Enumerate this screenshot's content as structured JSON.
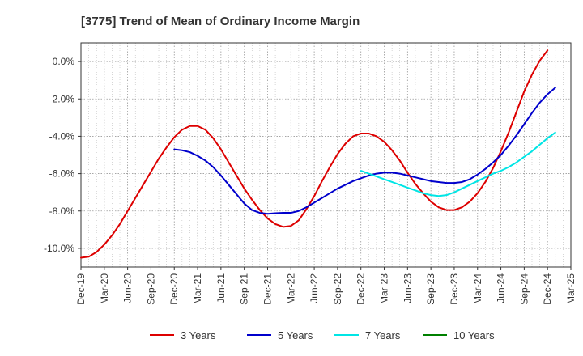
{
  "chart_data": {
    "type": "line",
    "title": "[3775]  Trend of Mean of Ordinary Income Margin",
    "xlabel": "",
    "ylabel": "",
    "x_ticks": [
      "Dec-19",
      "Mar-20",
      "Jun-20",
      "Sep-20",
      "Dec-20",
      "Mar-21",
      "Jun-21",
      "Sep-21",
      "Dec-21",
      "Mar-22",
      "Jun-22",
      "Sep-22",
      "Dec-22",
      "Mar-23",
      "Jun-23",
      "Sep-23",
      "Dec-23",
      "Mar-24",
      "Jun-24",
      "Sep-24",
      "Dec-24",
      "Mar-25"
    ],
    "y_ticks": [
      "0.0%",
      "-2.0%",
      "-4.0%",
      "-6.0%",
      "-8.0%",
      "-10.0%"
    ],
    "y_tick_values": [
      0,
      -2,
      -4,
      -6,
      -8,
      -10
    ],
    "ylim": [
      -11.0,
      1.0
    ],
    "grid": true,
    "legend_position": "bottom",
    "series": [
      {
        "name": "3 Years",
        "color": "#dd0000",
        "points": [
          [
            "Dec-19",
            -10.5
          ],
          [
            "Jan-20",
            -10.45
          ],
          [
            "Feb-20",
            -10.2
          ],
          [
            "Mar-20",
            -9.8
          ],
          [
            "Apr-20",
            -9.3
          ],
          [
            "May-20",
            -8.7
          ],
          [
            "Jun-20",
            -8.0
          ],
          [
            "Jul-20",
            -7.3
          ],
          [
            "Aug-20",
            -6.6
          ],
          [
            "Sep-20",
            -5.9
          ],
          [
            "Oct-20",
            -5.2
          ],
          [
            "Nov-20",
            -4.6
          ],
          [
            "Dec-20",
            -4.05
          ],
          [
            "Jan-21",
            -3.65
          ],
          [
            "Feb-21",
            -3.45
          ],
          [
            "Mar-21",
            -3.45
          ],
          [
            "Apr-21",
            -3.65
          ],
          [
            "May-21",
            -4.1
          ],
          [
            "Jun-21",
            -4.7
          ],
          [
            "Jul-21",
            -5.4
          ],
          [
            "Aug-21",
            -6.1
          ],
          [
            "Sep-21",
            -6.8
          ],
          [
            "Oct-21",
            -7.4
          ],
          [
            "Nov-21",
            -7.95
          ],
          [
            "Dec-21",
            -8.4
          ],
          [
            "Jan-22",
            -8.7
          ],
          [
            "Feb-22",
            -8.85
          ],
          [
            "Mar-22",
            -8.8
          ],
          [
            "Apr-22",
            -8.5
          ],
          [
            "May-22",
            -7.9
          ],
          [
            "Jun-22",
            -7.2
          ],
          [
            "Jul-22",
            -6.4
          ],
          [
            "Aug-22",
            -5.65
          ],
          [
            "Sep-22",
            -4.95
          ],
          [
            "Oct-22",
            -4.4
          ],
          [
            "Nov-22",
            -4.0
          ],
          [
            "Dec-22",
            -3.85
          ],
          [
            "Jan-23",
            -3.85
          ],
          [
            "Feb-23",
            -4.0
          ],
          [
            "Mar-23",
            -4.3
          ],
          [
            "Apr-23",
            -4.75
          ],
          [
            "May-23",
            -5.3
          ],
          [
            "Jun-23",
            -5.95
          ],
          [
            "Jul-23",
            -6.55
          ],
          [
            "Aug-23",
            -7.05
          ],
          [
            "Sep-23",
            -7.5
          ],
          [
            "Oct-23",
            -7.8
          ],
          [
            "Nov-23",
            -7.95
          ],
          [
            "Dec-23",
            -7.95
          ],
          [
            "Jan-24",
            -7.8
          ],
          [
            "Feb-24",
            -7.5
          ],
          [
            "Mar-24",
            -7.05
          ],
          [
            "Apr-24",
            -6.45
          ],
          [
            "May-24",
            -5.7
          ],
          [
            "Jun-24",
            -4.8
          ],
          [
            "Jul-24",
            -3.8
          ],
          [
            "Aug-24",
            -2.7
          ],
          [
            "Sep-24",
            -1.6
          ],
          [
            "Oct-24",
            -0.7
          ],
          [
            "Nov-24",
            0.05
          ],
          [
            "Dec-24",
            0.6
          ]
        ]
      },
      {
        "name": "5 Years",
        "color": "#0000cc",
        "points": [
          [
            "Dec-20",
            -4.7
          ],
          [
            "Jan-21",
            -4.75
          ],
          [
            "Feb-21",
            -4.85
          ],
          [
            "Mar-21",
            -5.05
          ],
          [
            "Apr-21",
            -5.3
          ],
          [
            "May-21",
            -5.65
          ],
          [
            "Jun-21",
            -6.1
          ],
          [
            "Jul-21",
            -6.6
          ],
          [
            "Aug-21",
            -7.1
          ],
          [
            "Sep-21",
            -7.6
          ],
          [
            "Oct-21",
            -7.95
          ],
          [
            "Nov-21",
            -8.1
          ],
          [
            "Dec-21",
            -8.15
          ],
          [
            "Jan-22",
            -8.12
          ],
          [
            "Feb-22",
            -8.1
          ],
          [
            "Mar-22",
            -8.1
          ],
          [
            "Apr-22",
            -8.0
          ],
          [
            "May-22",
            -7.8
          ],
          [
            "Jun-22",
            -7.55
          ],
          [
            "Jul-22",
            -7.3
          ],
          [
            "Aug-22",
            -7.05
          ],
          [
            "Sep-22",
            -6.8
          ],
          [
            "Oct-22",
            -6.6
          ],
          [
            "Nov-22",
            -6.4
          ],
          [
            "Dec-22",
            -6.25
          ],
          [
            "Jan-23",
            -6.1
          ],
          [
            "Feb-23",
            -6.0
          ],
          [
            "Mar-23",
            -5.95
          ],
          [
            "Apr-23",
            -5.95
          ],
          [
            "May-23",
            -6.0
          ],
          [
            "Jun-23",
            -6.1
          ],
          [
            "Jul-23",
            -6.2
          ],
          [
            "Aug-23",
            -6.3
          ],
          [
            "Sep-23",
            -6.4
          ],
          [
            "Oct-23",
            -6.45
          ],
          [
            "Nov-23",
            -6.5
          ],
          [
            "Dec-23",
            -6.5
          ],
          [
            "Jan-24",
            -6.45
          ],
          [
            "Feb-24",
            -6.3
          ],
          [
            "Mar-24",
            -6.05
          ],
          [
            "Apr-24",
            -5.75
          ],
          [
            "May-24",
            -5.4
          ],
          [
            "Jun-24",
            -5.0
          ],
          [
            "Jul-24",
            -4.5
          ],
          [
            "Aug-24",
            -3.95
          ],
          [
            "Sep-24",
            -3.35
          ],
          [
            "Oct-24",
            -2.75
          ],
          [
            "Nov-24",
            -2.2
          ],
          [
            "Dec-24",
            -1.75
          ],
          [
            "Jan-25",
            -1.4
          ]
        ]
      },
      {
        "name": "7 Years",
        "color": "#00e5e5",
        "points": [
          [
            "Dec-22",
            -5.85
          ],
          [
            "Jan-23",
            -6.0
          ],
          [
            "Feb-23",
            -6.15
          ],
          [
            "Mar-23",
            -6.3
          ],
          [
            "Apr-23",
            -6.45
          ],
          [
            "May-23",
            -6.6
          ],
          [
            "Jun-23",
            -6.75
          ],
          [
            "Jul-23",
            -6.9
          ],
          [
            "Aug-23",
            -7.05
          ],
          [
            "Sep-23",
            -7.15
          ],
          [
            "Oct-23",
            -7.2
          ],
          [
            "Nov-23",
            -7.15
          ],
          [
            "Dec-23",
            -7.0
          ],
          [
            "Jan-24",
            -6.8
          ],
          [
            "Feb-24",
            -6.6
          ],
          [
            "Mar-24",
            -6.4
          ],
          [
            "Apr-24",
            -6.2
          ],
          [
            "May-24",
            -6.0
          ],
          [
            "Jun-24",
            -5.85
          ],
          [
            "Jul-24",
            -5.65
          ],
          [
            "Aug-24",
            -5.4
          ],
          [
            "Sep-24",
            -5.1
          ],
          [
            "Oct-24",
            -4.8
          ],
          [
            "Nov-24",
            -4.45
          ],
          [
            "Dec-24",
            -4.1
          ],
          [
            "Jan-25",
            -3.8
          ]
        ]
      },
      {
        "name": "10 Years",
        "color": "#008000",
        "points": []
      }
    ]
  }
}
